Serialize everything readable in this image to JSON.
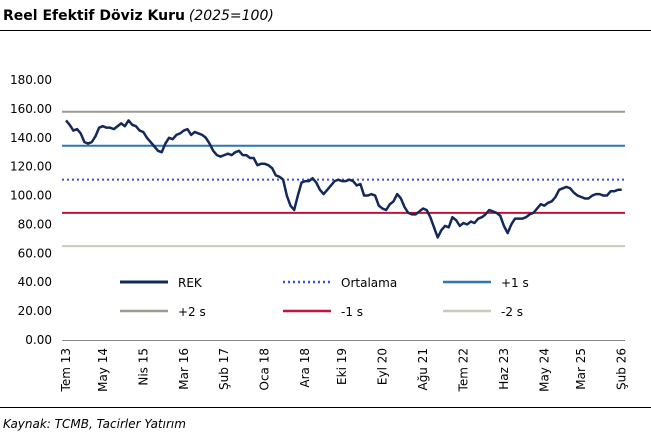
{
  "chart_data": {
    "type": "line",
    "title": "Reel Efektif Döviz Kuru",
    "subtitle": "(2025=100)",
    "source": "Kaynak: TCMB, Tacirler Yatırım",
    "categories": [
      "Tem 13",
      null,
      null,
      null,
      null,
      null,
      null,
      null,
      null,
      null,
      "May 14",
      null,
      null,
      null,
      null,
      null,
      null,
      null,
      null,
      null,
      null,
      "Nis 15",
      null,
      null,
      null,
      null,
      null,
      null,
      null,
      null,
      null,
      null,
      "Mar 16",
      null,
      null,
      null,
      null,
      null,
      null,
      null,
      null,
      null,
      null,
      "Şub 17",
      null,
      null,
      null,
      null,
      null,
      null,
      null,
      null,
      null,
      null,
      "Oca 18",
      null,
      null,
      null,
      null,
      null,
      null,
      null,
      null,
      null,
      null,
      "Ara 18",
      null,
      null,
      null,
      null,
      null,
      null,
      null,
      null,
      null,
      "Eki 19",
      null,
      null,
      null,
      null,
      null,
      null,
      null,
      null,
      null,
      null,
      "Eyl 20",
      null,
      null,
      null,
      null,
      null,
      null,
      null,
      null,
      null,
      null,
      "Ağu 21",
      null,
      null,
      null,
      null,
      null,
      null,
      null,
      null,
      null,
      null,
      "Tem 22",
      null,
      null,
      null,
      null,
      null,
      null,
      null,
      null,
      null,
      null,
      "Haz 23",
      null,
      null,
      null,
      null,
      null,
      null,
      null,
      null,
      null,
      null,
      "May 24",
      null,
      null,
      null,
      null,
      null,
      null,
      null,
      null,
      null,
      "Mar 25",
      null,
      null,
      null,
      null,
      null,
      null,
      null,
      null,
      null,
      null,
      "Şub 26"
    ],
    "series": [
      {
        "name": "REK",
        "color": "#14285a",
        "style": "solid",
        "values": [
          152,
          149,
          145,
          146,
          143,
          137,
          136,
          137,
          141,
          147,
          148,
          147,
          147,
          146,
          148,
          150,
          148,
          152,
          149,
          148,
          145,
          144,
          140,
          137,
          134,
          131,
          130,
          136,
          140,
          139,
          142,
          143,
          145,
          146,
          142,
          144,
          143,
          142,
          140,
          136,
          131,
          128,
          127,
          128,
          129,
          128,
          130,
          131,
          128,
          128,
          126,
          126,
          121,
          122,
          122,
          121,
          119,
          114,
          113,
          111,
          100,
          93,
          90,
          100,
          109,
          110,
          110,
          112,
          109,
          104,
          101,
          104,
          107,
          110,
          111,
          110,
          110,
          111,
          110,
          107,
          108,
          100,
          100,
          101,
          100,
          93,
          91,
          90,
          94,
          96,
          101,
          98,
          92,
          88,
          87,
          87,
          89,
          91,
          90,
          85,
          78,
          71,
          76,
          79,
          78,
          85,
          83,
          79,
          81,
          80,
          82,
          81,
          84,
          85,
          87,
          90,
          89,
          88,
          86,
          79,
          74,
          80,
          84,
          84,
          84,
          85,
          87,
          88,
          91,
          94,
          93,
          95,
          96,
          99,
          104,
          105,
          106,
          105,
          102,
          100,
          99,
          98,
          98,
          100,
          101,
          101,
          100,
          100,
          103,
          103,
          104,
          104
        ]
      },
      {
        "name": "Ortalama",
        "color": "#3a4fd8",
        "style": "dotted",
        "value": 111
      },
      {
        "name": "+1 s",
        "color": "#2e75b6",
        "style": "solid",
        "value": 134.5
      },
      {
        "name": "+2 s",
        "color": "#9b9b8f",
        "style": "solid",
        "value": 158
      },
      {
        "name": "-1 s",
        "color": "#c0143c",
        "style": "solid",
        "value": 88
      },
      {
        "name": "-2 s",
        "color": "#c9c9bf",
        "style": "solid",
        "value": 65
      }
    ],
    "ylim": [
      0,
      180
    ],
    "yticks": [
      {
        "value": 0,
        "label": "0.00"
      },
      {
        "value": 20,
        "label": "20.00"
      },
      {
        "value": 40,
        "label": "40.00"
      },
      {
        "value": 60,
        "label": "60.00"
      },
      {
        "value": 80,
        "label": "80.00"
      },
      {
        "value": 100,
        "label": "100.00"
      },
      {
        "value": 120,
        "label": "120.00"
      },
      {
        "value": 140,
        "label": "140.00"
      },
      {
        "value": 160,
        "label": "160.00"
      },
      {
        "value": 180,
        "label": "180.00"
      }
    ],
    "grid": false
  }
}
